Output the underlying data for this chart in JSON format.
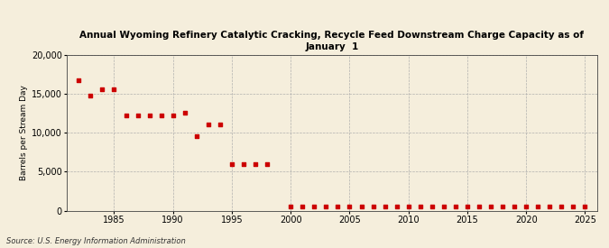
{
  "title": "Annual Wyoming Refinery Catalytic Cracking, Recycle Feed Downstream Charge Capacity as of\nJanuary  1",
  "ylabel": "Barrels per Stream Day",
  "source": "Source: U.S. Energy Information Administration",
  "background_color": "#f5eedc",
  "marker_color": "#cc0000",
  "xlim": [
    1981,
    2026
  ],
  "ylim": [
    0,
    20000
  ],
  "yticks": [
    0,
    5000,
    10000,
    15000,
    20000
  ],
  "xticks": [
    1985,
    1990,
    1995,
    2000,
    2005,
    2010,
    2015,
    2020,
    2025
  ],
  "data": [
    [
      1982,
      16700
    ],
    [
      1983,
      14700
    ],
    [
      1984,
      15500
    ],
    [
      1985,
      15600
    ],
    [
      1986,
      12200
    ],
    [
      1987,
      12200
    ],
    [
      1988,
      12200
    ],
    [
      1989,
      12200
    ],
    [
      1990,
      12200
    ],
    [
      1991,
      12500
    ],
    [
      1992,
      9500
    ],
    [
      1993,
      11000
    ],
    [
      1994,
      11000
    ],
    [
      1995,
      6000
    ],
    [
      1996,
      6000
    ],
    [
      1997,
      6000
    ],
    [
      1998,
      6000
    ],
    [
      2000,
      500
    ],
    [
      2001,
      500
    ],
    [
      2002,
      500
    ],
    [
      2003,
      500
    ],
    [
      2004,
      500
    ],
    [
      2005,
      500
    ],
    [
      2006,
      500
    ],
    [
      2007,
      500
    ],
    [
      2008,
      500
    ],
    [
      2009,
      500
    ],
    [
      2010,
      500
    ],
    [
      2011,
      500
    ],
    [
      2012,
      500
    ],
    [
      2013,
      500
    ],
    [
      2014,
      500
    ],
    [
      2015,
      500
    ],
    [
      2016,
      500
    ],
    [
      2017,
      500
    ],
    [
      2018,
      500
    ],
    [
      2019,
      500
    ],
    [
      2020,
      500
    ],
    [
      2021,
      500
    ],
    [
      2022,
      500
    ],
    [
      2023,
      500
    ],
    [
      2024,
      500
    ],
    [
      2025,
      500
    ]
  ]
}
